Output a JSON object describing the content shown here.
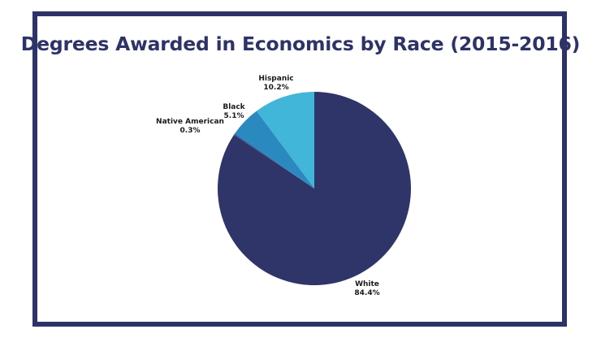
{
  "title": "Degrees Awarded in Economics by Race (2015-2016)",
  "chart_data": {
    "type": "pie",
    "title": "Degrees Awarded in Economics by Race (2015-2016)",
    "slices": [
      {
        "label": "Hispanic",
        "value": 10.2,
        "display": "10.2%",
        "color": "#41b6d8"
      },
      {
        "label": "Black",
        "value": 5.1,
        "display": "5.1%",
        "color": "#2a8abf"
      },
      {
        "label": "Native American",
        "value": 0.3,
        "display": "0.3%",
        "color": "#2f6db0"
      },
      {
        "label": "White",
        "value": 84.4,
        "display": "84.4%",
        "color": "#2f3469"
      }
    ],
    "start_angle_deg": 0,
    "direction": "counterclockwise",
    "legend": "none"
  }
}
